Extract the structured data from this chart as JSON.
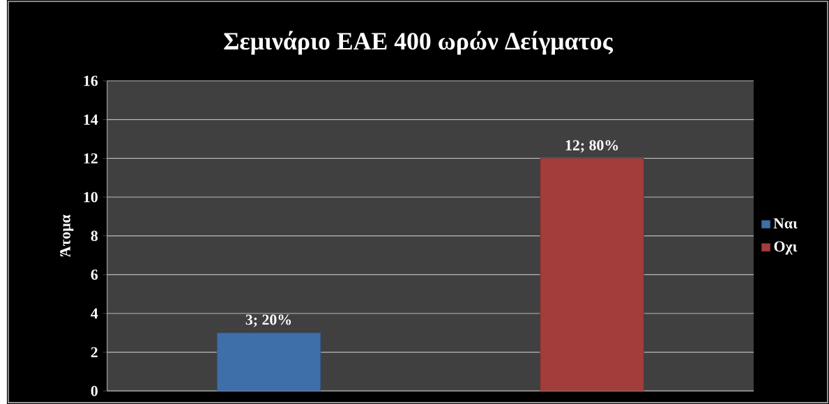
{
  "chart_data": {
    "type": "bar",
    "title": "Σεμινάριο ΕΑΕ 400 ωρών Δείγματος",
    "ylabel": "Άτομα",
    "categories": [
      null,
      null
    ],
    "series": [
      {
        "name": "Ναι",
        "color": "#3f6fa8",
        "values": [
          3,
          null
        ],
        "value_labels": [
          "3; 20%",
          null
        ]
      },
      {
        "name": "Οχι",
        "color": "#a23d3c",
        "values": [
          null,
          12
        ],
        "value_labels": [
          null,
          "12; 80%"
        ]
      }
    ],
    "ylim": [
      0,
      16
    ],
    "yticks": [
      0,
      2,
      4,
      6,
      8,
      10,
      12,
      14,
      16
    ],
    "grid": "y",
    "legend": "right"
  }
}
